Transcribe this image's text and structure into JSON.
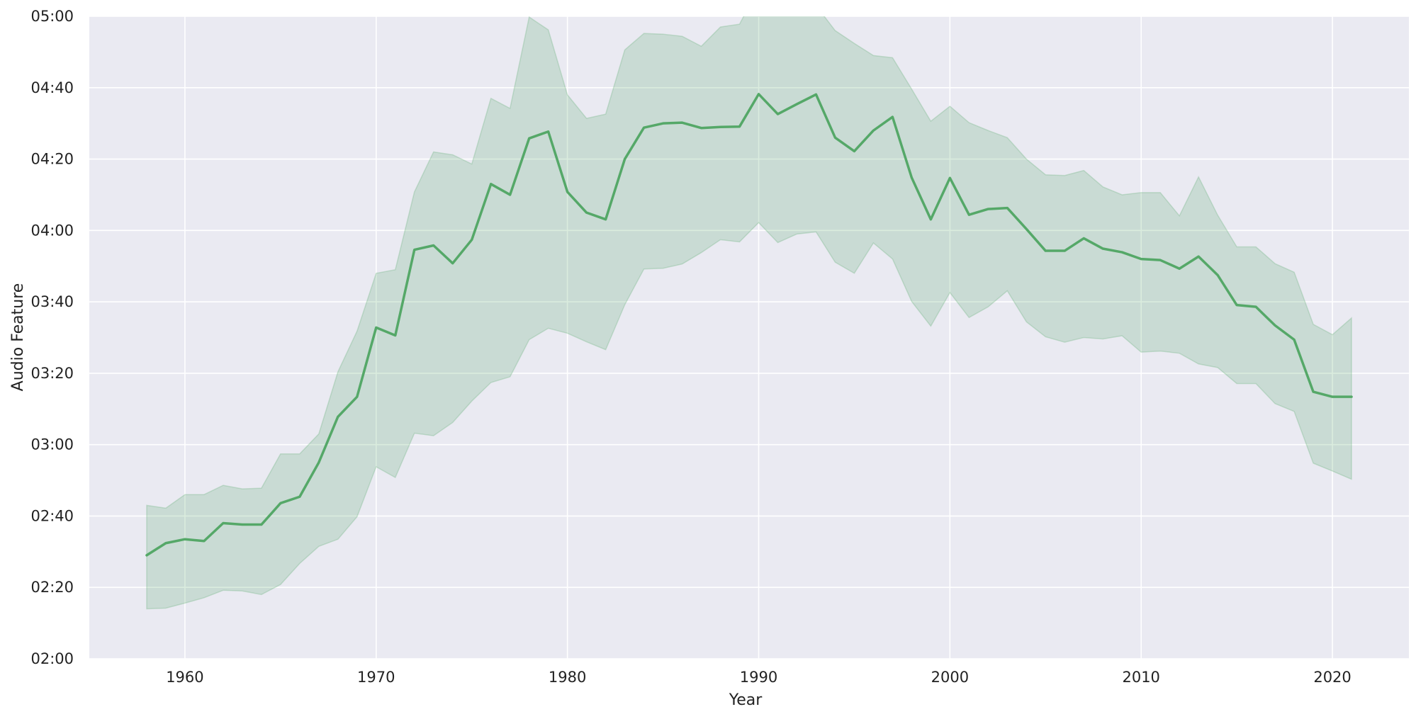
{
  "chart_data": {
    "type": "line",
    "title": "",
    "xlabel": "Year",
    "ylabel": "Audio Feature",
    "xlim": [
      1955,
      2024
    ],
    "ylim_seconds": [
      120,
      300
    ],
    "xticks": [
      1960,
      1970,
      1980,
      1990,
      2000,
      2010,
      2020
    ],
    "xtick_labels": [
      "1960",
      "1970",
      "1980",
      "1990",
      "2000",
      "2010",
      "2020"
    ],
    "yticks_seconds": [
      120,
      140,
      160,
      180,
      200,
      220,
      240,
      260,
      280,
      300
    ],
    "ytick_labels": [
      "02:00",
      "02:20",
      "02:40",
      "03:00",
      "03:20",
      "03:40",
      "04:00",
      "04:20",
      "04:40",
      "05:00"
    ],
    "grid": true,
    "legend": "none",
    "colors": {
      "plot_bg": "#eaeaf2",
      "grid": "#ffffff",
      "line": "#55a868",
      "band": "#55a868"
    },
    "series": [
      {
        "x": [
          1958,
          1959,
          1960,
          1961,
          1962,
          1963,
          1964,
          1965,
          1966,
          1967,
          1968,
          1969,
          1970,
          1971,
          1972,
          1973,
          1974,
          1975,
          1976,
          1977,
          1978,
          1979,
          1980,
          1981,
          1982,
          1983,
          1984,
          1985,
          1986,
          1987,
          1988,
          1989,
          1990,
          1991,
          1992,
          1993,
          1994,
          1995,
          1996,
          1997,
          1998,
          1999,
          2000,
          2001,
          2002,
          2003,
          2004,
          2005,
          2006,
          2007,
          2008,
          2009,
          2010,
          2011,
          2012,
          2013,
          2014,
          2015,
          2016,
          2017,
          2018,
          2019,
          2020,
          2021
        ],
        "y": [
          149,
          152.4,
          153.5,
          153,
          158,
          157.6,
          157.6,
          163.6,
          165.4,
          175,
          187.8,
          193.4,
          212.8,
          210.6,
          234.6,
          235.8,
          230.8,
          237.4,
          253,
          250,
          265.8,
          267.7,
          250.8,
          245,
          243.1,
          260,
          268.8,
          270,
          270.2,
          268.7,
          269,
          269.1,
          278.2,
          272.6,
          275.4,
          278.1,
          266,
          262.2,
          268,
          271.8,
          254.8,
          243.1,
          254.7,
          244.4,
          246,
          246.3,
          240.4,
          234.3,
          234.3,
          237.8,
          234.9,
          233.9,
          232,
          231.7,
          229.3,
          232.7,
          227.5,
          219.1,
          218.6,
          213.4,
          209.4,
          194.8,
          193.4,
          193.4
        ],
        "ci_low": [
          134,
          134.2,
          135.6,
          137.1,
          139.2,
          139,
          138,
          140.8,
          146.7,
          151.5,
          153.5,
          159.8,
          173.8,
          170.8,
          183.2,
          182.5,
          186.2,
          192.2,
          197.4,
          199,
          209.4,
          212.6,
          211.2,
          208.8,
          206.6,
          219.2,
          229.2,
          229.4,
          230.6,
          233.8,
          237.4,
          236.8,
          242.2,
          236.6,
          239,
          239.6,
          231.1,
          228,
          236.5,
          232,
          220.1,
          213.2,
          222.6,
          215.6,
          218.6,
          223.1,
          214.4,
          210.2,
          208.7,
          210,
          209.6,
          210.5,
          205.9,
          206.2,
          205.6,
          202.6,
          201.6,
          197.1,
          197.1,
          191.5,
          189.3,
          174.8,
          172.6,
          170.3
        ],
        "ci_high": [
          163,
          162.2,
          166,
          166,
          168.6,
          167.6,
          167.8,
          177.4,
          177.4,
          183,
          200.4,
          211.8,
          228,
          229,
          250.8,
          262,
          261.2,
          258.6,
          277,
          274.2,
          299.8,
          296.2,
          278,
          271.4,
          272.6,
          290.6,
          295.2,
          295,
          294.4,
          291.6,
          297,
          297.8,
          308,
          306,
          306,
          303,
          296,
          292.4,
          289,
          288.4,
          279.6,
          270.6,
          274.8,
          270.2,
          268,
          266,
          260,
          255.6,
          255.4,
          256.8,
          252.2,
          250,
          250.6,
          250.6,
          244.1,
          255,
          244.3,
          235.4,
          235.4,
          230.7,
          228.3,
          213.7,
          210.8,
          215.5
        ]
      }
    ]
  }
}
